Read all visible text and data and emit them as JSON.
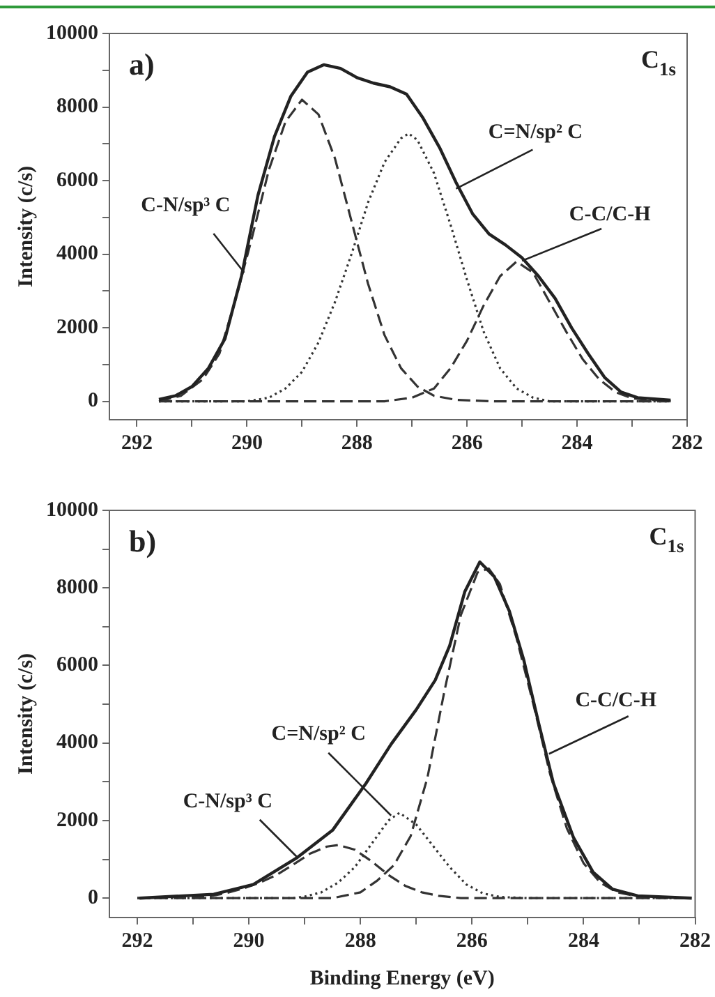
{
  "chart_data": [
    {
      "type": "line",
      "ylabel": "Intensity (c/s)",
      "xlim": [
        292.5,
        282
      ],
      "ylim": [
        -500,
        10000
      ],
      "xticks": [
        292,
        {
          "value": 291,
          "label": null
        },
        290,
        {
          "value": 289,
          "label": null
        },
        288,
        {
          "value": 287,
          "label": null
        },
        286,
        {
          "value": 285,
          "label": null
        },
        284,
        {
          "value": 283,
          "label": null
        },
        282
      ],
      "yticks": [
        0,
        {
          "value": 1000,
          "label": null
        },
        2000,
        {
          "value": 3000,
          "label": null
        },
        4000,
        {
          "value": 5000,
          "label": null
        },
        6000,
        {
          "value": 7000,
          "label": null
        },
        8000,
        {
          "value": 9000,
          "label": null
        },
        10000
      ],
      "grid": false,
      "legend": false,
      "marker": "none",
      "annotations": [
        "a)",
        "C$_{1s}$",
        {
          "text": "C-N/sp³ C",
          "x": 290.05,
          "y": 3500
        },
        {
          "text": "C=N/sp² C",
          "x": 286.2,
          "y": 5780
        },
        {
          "text": "C-C/C-H",
          "x": 285.0,
          "y": 3820
        }
      ],
      "series": [
        {
          "color": "#222222",
          "line_style": "solid",
          "x": [
            291.6,
            291.3,
            291.0,
            290.7,
            290.4,
            290.1,
            289.8,
            289.5,
            289.2,
            288.9,
            288.6,
            288.3,
            288.0,
            287.7,
            287.4,
            287.1,
            286.8,
            286.5,
            286.2,
            285.9,
            285.6,
            285.3,
            285.0,
            284.7,
            284.4,
            284.1,
            283.8,
            283.5,
            283.2,
            282.9,
            282.3
          ],
          "values": [
            50,
            150,
            400,
            900,
            1700,
            3400,
            5600,
            7200,
            8300,
            8950,
            9150,
            9050,
            8800,
            8650,
            8550,
            8350,
            7700,
            6900,
            5950,
            5100,
            4550,
            4250,
            3900,
            3400,
            2800,
            2000,
            1300,
            650,
            250,
            100,
            30
          ]
        },
        {
          "color": "#333333",
          "line_style": "dashed",
          "x": [
            291.6,
            291.2,
            290.8,
            290.5,
            290.2,
            289.9,
            289.6,
            289.3,
            289.0,
            288.7,
            288.4,
            288.1,
            287.8,
            287.5,
            287.2,
            286.9,
            286.6,
            286.2,
            285.5,
            284.0,
            282.3
          ],
          "values": [
            0,
            150,
            600,
            1300,
            2800,
            4500,
            6300,
            7600,
            8200,
            7800,
            6600,
            4900,
            3200,
            1800,
            900,
            400,
            150,
            40,
            0,
            0,
            0
          ]
        },
        {
          "color": "#333333",
          "line_style": "dotted",
          "x": [
            291.6,
            290.0,
            289.6,
            289.3,
            289.0,
            288.7,
            288.4,
            288.1,
            287.8,
            287.5,
            287.2,
            287.06,
            286.9,
            286.6,
            286.3,
            286.0,
            285.7,
            285.4,
            285.1,
            284.8,
            284.5,
            282.3
          ],
          "values": [
            0,
            0,
            100,
            350,
            800,
            1600,
            2700,
            4000,
            5400,
            6500,
            7150,
            7280,
            7100,
            6200,
            4800,
            3300,
            1900,
            900,
            350,
            100,
            0,
            0
          ]
        },
        {
          "color": "#333333",
          "line_style": "dashed",
          "x": [
            291.6,
            287.5,
            287.0,
            286.6,
            286.3,
            286.0,
            285.7,
            285.4,
            285.1,
            284.8,
            284.5,
            284.2,
            283.9,
            283.6,
            283.3,
            283.0,
            282.3
          ],
          "values": [
            0,
            0,
            100,
            350,
            900,
            1650,
            2600,
            3400,
            3800,
            3500,
            2700,
            1900,
            1150,
            600,
            250,
            80,
            0
          ]
        }
      ]
    },
    {
      "type": "line",
      "ylabel": "Intensity (c/s)",
      "xlabel": "Binding Energy (eV)",
      "xlim": [
        292.5,
        282
      ],
      "ylim": [
        -500,
        10000
      ],
      "xticks": [
        292,
        {
          "value": 291,
          "label": null
        },
        290,
        {
          "value": 289,
          "label": null
        },
        288,
        {
          "value": 287,
          "label": null
        },
        286,
        {
          "value": 285,
          "label": null
        },
        284,
        {
          "value": 283,
          "label": null
        },
        282
      ],
      "yticks": [
        0,
        {
          "value": 1000,
          "label": null
        },
        2000,
        {
          "value": 3000,
          "label": null
        },
        4000,
        {
          "value": 5000,
          "label": null
        },
        6000,
        {
          "value": 7000,
          "label": null
        },
        8000,
        {
          "value": 9000,
          "label": null
        },
        10000
      ],
      "grid": false,
      "legend": false,
      "marker": "none",
      "annotations": [
        "b)",
        "C$_{1s}$",
        {
          "text": "C=N/sp² C",
          "x": 287.45,
          "y": 2130
        },
        {
          "text": "C-N/sp³ C",
          "x": 289.13,
          "y": 1050
        },
        {
          "text": "C-C/C-H",
          "x": 284.62,
          "y": 3720
        }
      ],
      "series": [
        {
          "color": "#222222",
          "line_style": "solid",
          "x": [
            291.96,
            290.63,
            289.92,
            289.13,
            288.5,
            287.9,
            287.45,
            287.0,
            286.66,
            286.4,
            286.13,
            285.86,
            285.6,
            285.33,
            285.07,
            284.8,
            284.54,
            284.18,
            283.83,
            283.48,
            283.03,
            282.06
          ],
          "values": [
            0,
            100,
            350,
            1050,
            1750,
            2960,
            3970,
            4860,
            5620,
            6510,
            7900,
            8670,
            8290,
            7400,
            6130,
            4480,
            2960,
            1560,
            670,
            230,
            60,
            0
          ]
        },
        {
          "color": "#333333",
          "line_style": "dashed",
          "x": [
            292.0,
            290.7,
            290.4,
            290.1,
            289.8,
            289.5,
            289.2,
            288.9,
            288.6,
            288.4,
            288.1,
            287.8,
            287.5,
            287.2,
            286.9,
            286.6,
            286.2,
            282.1
          ],
          "values": [
            0,
            50,
            130,
            250,
            400,
            600,
            870,
            1150,
            1330,
            1370,
            1250,
            950,
            600,
            320,
            150,
            60,
            0,
            0
          ]
        },
        {
          "color": "#333333",
          "line_style": "dotted",
          "x": [
            292.0,
            289.2,
            289.0,
            288.7,
            288.4,
            288.1,
            287.8,
            287.5,
            287.3,
            287.0,
            286.7,
            286.4,
            286.1,
            285.8,
            285.5,
            285.0,
            282.1
          ],
          "values": [
            0,
            0,
            40,
            150,
            400,
            800,
            1400,
            2000,
            2200,
            1900,
            1350,
            800,
            350,
            120,
            30,
            0,
            0
          ]
        },
        {
          "color": "#333333",
          "line_style": "dashed",
          "x": [
            292.0,
            288.5,
            288.0,
            287.7,
            287.4,
            287.1,
            286.8,
            286.5,
            286.2,
            285.9,
            285.7,
            285.5,
            285.2,
            284.9,
            284.6,
            284.3,
            284.0,
            283.7,
            283.4,
            283.0,
            282.1
          ],
          "values": [
            0,
            0,
            150,
            450,
            850,
            1600,
            3100,
            5300,
            7300,
            8400,
            8500,
            8100,
            6700,
            5000,
            3200,
            1800,
            900,
            400,
            150,
            40,
            0
          ]
        }
      ]
    }
  ]
}
